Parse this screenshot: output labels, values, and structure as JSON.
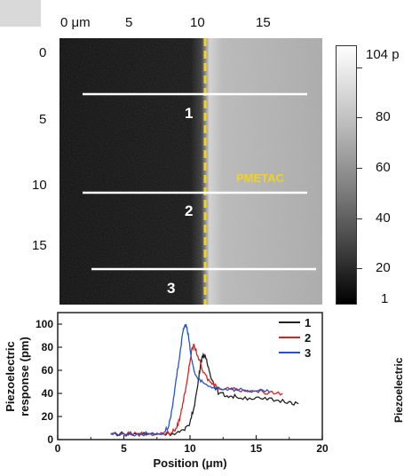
{
  "map": {
    "x_ticks": [
      "0 μm",
      "5",
      "10",
      "15"
    ],
    "y_ticks": [
      "0",
      "5",
      "10",
      "15"
    ],
    "line_labels": [
      "1",
      "2",
      "3"
    ],
    "region_label": "PMETAC",
    "colorbar_labels": [
      "104 p",
      "80",
      "60",
      "40",
      "20",
      "1"
    ],
    "colors": {
      "boundary": "#f2d21e",
      "region_label": "#f2d21e",
      "scan_line": "#ffffff",
      "dark": "#0a0a0a",
      "bright": "#a8a8a8"
    }
  },
  "chart_data": {
    "type": "line",
    "xlabel": "Position (μm)",
    "ylabel": [
      "Piezoelectric",
      "response (pm)"
    ],
    "xlim": [
      0,
      20
    ],
    "ylim": [
      0,
      110
    ],
    "x_ticks": [
      "0",
      "5",
      "10",
      "15",
      "20"
    ],
    "y_ticks": [
      "0",
      "20",
      "40",
      "60",
      "80",
      "100"
    ],
    "legend_position": "top-right",
    "series": [
      {
        "name": "1",
        "color": "#222222",
        "x": [
          4.0,
          5.0,
          6.0,
          7.0,
          8.0,
          9.0,
          9.6,
          10.0,
          10.3,
          10.6,
          10.8,
          11.0,
          11.2,
          11.5,
          11.8,
          12.2,
          12.8,
          13.5,
          14.5,
          15.5,
          16.5,
          17.5,
          18.2
        ],
        "y": [
          5,
          5,
          5,
          5,
          5,
          6,
          8,
          15,
          28,
          48,
          66,
          74,
          70,
          58,
          48,
          40,
          38,
          37,
          36,
          35,
          34,
          33,
          31
        ]
      },
      {
        "name": "2",
        "color": "#e02020",
        "x": [
          4.0,
          5.0,
          6.0,
          7.0,
          8.0,
          8.6,
          9.0,
          9.3,
          9.6,
          9.9,
          10.1,
          10.3,
          10.6,
          11.0,
          11.5,
          12.0,
          13.0,
          14.0,
          15.0,
          16.0,
          17.0
        ],
        "y": [
          5,
          5,
          5,
          5,
          5,
          6,
          10,
          22,
          40,
          60,
          76,
          82,
          72,
          58,
          50,
          46,
          44,
          43,
          42,
          41,
          40
        ]
      },
      {
        "name": "3",
        "color": "#2255cc",
        "x": [
          4.0,
          5.0,
          6.0,
          7.0,
          8.0,
          8.4,
          8.7,
          9.0,
          9.3,
          9.5,
          9.7,
          9.9,
          10.1,
          10.4,
          10.8,
          11.3,
          12.0,
          13.0,
          14.0,
          15.0,
          16.0
        ],
        "y": [
          5,
          5,
          5,
          5,
          6,
          12,
          30,
          55,
          80,
          96,
          100,
          88,
          70,
          56,
          50,
          47,
          45,
          44,
          43,
          42,
          41
        ]
      }
    ]
  }
}
